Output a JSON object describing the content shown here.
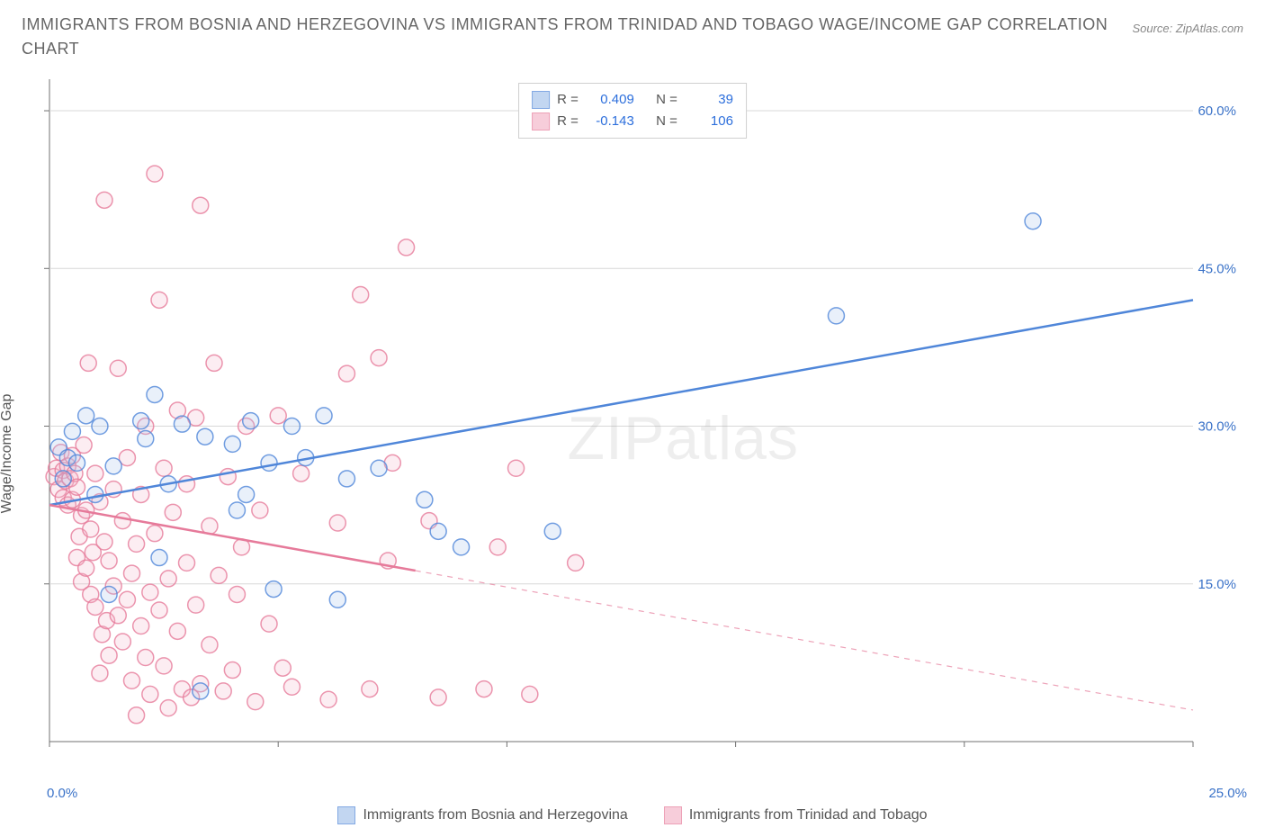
{
  "title": "Immigrants from Bosnia and Herzegovina vs Immigrants from Trinidad and Tobago Wage/Income Gap Correlation Chart",
  "source_label": "Source: ZipAtlas.com",
  "watermark": {
    "a": "ZIP",
    "b": "atlas"
  },
  "ylabel": "Wage/Income Gap",
  "chart": {
    "type": "scatter",
    "background_color": "#ffffff",
    "axis_color": "#707070",
    "grid_color": "#d8d8d8",
    "tick_label_color": "#3a72c8",
    "xlim": [
      0,
      25
    ],
    "ylim": [
      0,
      63
    ],
    "x_ticks": [
      0,
      5,
      10,
      15,
      20,
      25
    ],
    "x_tick_left_label": "0.0%",
    "x_tick_right_label": "25.0%",
    "y_ticks": [
      {
        "v": 15,
        "label": "15.0%"
      },
      {
        "v": 30,
        "label": "30.0%"
      },
      {
        "v": 45,
        "label": "45.0%"
      },
      {
        "v": 60,
        "label": "60.0%"
      }
    ],
    "marker_radius": 9,
    "marker_stroke_width": 1.5,
    "marker_fill_opacity": 0.25,
    "trend_line_width": 2.5,
    "series": [
      {
        "name": "Immigrants from Bosnia and Herzegovina",
        "color": "#4f86d9",
        "fill": "#a9c5ec",
        "r_label": "R =",
        "n_label": "N =",
        "r_value": "0.409",
        "n_value": "39",
        "trend": {
          "x1": 0,
          "y1": 22.5,
          "x2": 25,
          "y2": 42,
          "solid_until_x": 25
        },
        "points": [
          [
            0.2,
            28
          ],
          [
            0.3,
            25
          ],
          [
            0.4,
            27
          ],
          [
            0.5,
            29.5
          ],
          [
            0.6,
            26.5
          ],
          [
            0.8,
            31
          ],
          [
            1.0,
            23.5
          ],
          [
            1.1,
            30
          ],
          [
            1.3,
            14
          ],
          [
            1.4,
            26.2
          ],
          [
            2.0,
            30.5
          ],
          [
            2.1,
            28.8
          ],
          [
            2.3,
            33
          ],
          [
            2.4,
            17.5
          ],
          [
            2.6,
            24.5
          ],
          [
            2.9,
            30.2
          ],
          [
            3.3,
            4.8
          ],
          [
            3.4,
            29
          ],
          [
            4.0,
            28.3
          ],
          [
            4.1,
            22
          ],
          [
            4.3,
            23.5
          ],
          [
            4.4,
            30.5
          ],
          [
            4.8,
            26.5
          ],
          [
            4.9,
            14.5
          ],
          [
            5.3,
            30
          ],
          [
            5.6,
            27
          ],
          [
            6.0,
            31
          ],
          [
            6.3,
            13.5
          ],
          [
            6.5,
            25
          ],
          [
            7.2,
            26
          ],
          [
            8.2,
            23
          ],
          [
            8.5,
            20
          ],
          [
            9.0,
            18.5
          ],
          [
            11.0,
            20
          ],
          [
            17.2,
            40.5
          ],
          [
            21.5,
            49.5
          ]
        ]
      },
      {
        "name": "Immigrants from Trinidad and Tobago",
        "color": "#e67a9a",
        "fill": "#f5b9cb",
        "r_label": "R =",
        "n_label": "N =",
        "r_value": "-0.143",
        "n_value": "106",
        "trend": {
          "x1": 0,
          "y1": 22.5,
          "x2": 25,
          "y2": 3,
          "solid_until_x": 8
        },
        "points": [
          [
            0.1,
            25.2
          ],
          [
            0.15,
            26
          ],
          [
            0.2,
            24
          ],
          [
            0.25,
            27.5
          ],
          [
            0.3,
            23.2
          ],
          [
            0.3,
            25.8
          ],
          [
            0.35,
            24.8
          ],
          [
            0.4,
            26.2
          ],
          [
            0.4,
            22.5
          ],
          [
            0.45,
            25
          ],
          [
            0.5,
            27.2
          ],
          [
            0.5,
            23
          ],
          [
            0.55,
            25.5
          ],
          [
            0.6,
            17.5
          ],
          [
            0.6,
            24.2
          ],
          [
            0.65,
            19.5
          ],
          [
            0.7,
            15.2
          ],
          [
            0.7,
            21.5
          ],
          [
            0.75,
            28.2
          ],
          [
            0.8,
            16.5
          ],
          [
            0.8,
            22
          ],
          [
            0.85,
            36
          ],
          [
            0.9,
            14
          ],
          [
            0.9,
            20.2
          ],
          [
            0.95,
            18
          ],
          [
            1.0,
            25.5
          ],
          [
            1.0,
            12.8
          ],
          [
            1.1,
            6.5
          ],
          [
            1.1,
            22.8
          ],
          [
            1.15,
            10.2
          ],
          [
            1.2,
            19
          ],
          [
            1.2,
            51.5
          ],
          [
            1.25,
            11.5
          ],
          [
            1.3,
            17.2
          ],
          [
            1.3,
            8.2
          ],
          [
            1.4,
            24
          ],
          [
            1.4,
            14.8
          ],
          [
            1.5,
            35.5
          ],
          [
            1.5,
            12
          ],
          [
            1.6,
            21
          ],
          [
            1.6,
            9.5
          ],
          [
            1.7,
            13.5
          ],
          [
            1.7,
            27
          ],
          [
            1.8,
            16
          ],
          [
            1.8,
            5.8
          ],
          [
            1.9,
            2.5
          ],
          [
            1.9,
            18.8
          ],
          [
            2.0,
            11
          ],
          [
            2.0,
            23.5
          ],
          [
            2.1,
            8
          ],
          [
            2.1,
            30
          ],
          [
            2.2,
            14.2
          ],
          [
            2.2,
            4.5
          ],
          [
            2.3,
            19.8
          ],
          [
            2.3,
            54
          ],
          [
            2.4,
            42
          ],
          [
            2.4,
            12.5
          ],
          [
            2.5,
            26
          ],
          [
            2.5,
            7.2
          ],
          [
            2.6,
            15.5
          ],
          [
            2.6,
            3.2
          ],
          [
            2.7,
            21.8
          ],
          [
            2.8,
            31.5
          ],
          [
            2.8,
            10.5
          ],
          [
            2.9,
            5
          ],
          [
            3.0,
            24.5
          ],
          [
            3.0,
            17
          ],
          [
            3.1,
            4.2
          ],
          [
            3.2,
            13
          ],
          [
            3.2,
            30.8
          ],
          [
            3.3,
            51
          ],
          [
            3.3,
            5.5
          ],
          [
            3.5,
            20.5
          ],
          [
            3.5,
            9.2
          ],
          [
            3.6,
            36
          ],
          [
            3.7,
            15.8
          ],
          [
            3.8,
            4.8
          ],
          [
            3.9,
            25.2
          ],
          [
            4.0,
            6.8
          ],
          [
            4.1,
            14
          ],
          [
            4.2,
            18.5
          ],
          [
            4.3,
            30
          ],
          [
            4.5,
            3.8
          ],
          [
            4.6,
            22
          ],
          [
            4.8,
            11.2
          ],
          [
            5.0,
            31
          ],
          [
            5.1,
            7
          ],
          [
            5.3,
            5.2
          ],
          [
            5.5,
            25.5
          ],
          [
            6.1,
            4
          ],
          [
            6.3,
            20.8
          ],
          [
            6.5,
            35
          ],
          [
            6.8,
            42.5
          ],
          [
            7.0,
            5
          ],
          [
            7.2,
            36.5
          ],
          [
            7.4,
            17.2
          ],
          [
            7.5,
            26.5
          ],
          [
            7.8,
            47
          ],
          [
            8.3,
            21
          ],
          [
            8.5,
            4.2
          ],
          [
            9.5,
            5
          ],
          [
            9.8,
            18.5
          ],
          [
            10.2,
            26
          ],
          [
            10.5,
            4.5
          ],
          [
            11.5,
            17
          ]
        ]
      }
    ]
  }
}
